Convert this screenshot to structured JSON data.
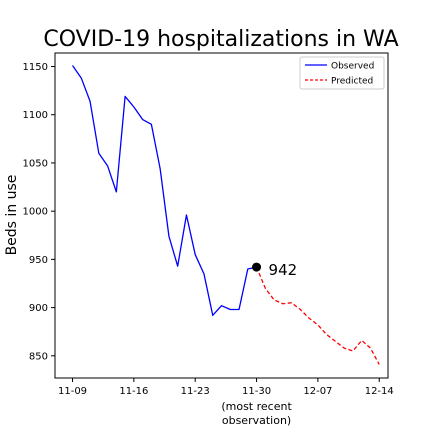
{
  "chart_data": {
    "type": "line",
    "title": "COVID-19 hospitalizations in WA",
    "xlabel": "",
    "ylabel": "Beds in use",
    "ylim": [
      827,
      1164
    ],
    "xlim": [
      "2020-11-07",
      "2020-12-15"
    ],
    "x_ticks": [
      "11-09",
      "11-16",
      "11-23",
      "11-30",
      "12-07",
      "12-14"
    ],
    "x_tick_dates": [
      "2020-11-09",
      "2020-11-16",
      "2020-11-23",
      "2020-11-30",
      "2020-12-07",
      "2020-12-14"
    ],
    "x_tick_annotation": "(most recent\nobservation)",
    "y_ticks": [
      850,
      900,
      950,
      1000,
      1050,
      1100,
      1150
    ],
    "grid": false,
    "legend_position": "top-right",
    "series": [
      {
        "name": "Observed",
        "color": "#0000ff",
        "style": "solid",
        "x": [
          "2020-11-09",
          "2020-11-10",
          "2020-11-11",
          "2020-11-12",
          "2020-11-13",
          "2020-11-14",
          "2020-11-15",
          "2020-11-16",
          "2020-11-17",
          "2020-11-18",
          "2020-11-19",
          "2020-11-20",
          "2020-11-21",
          "2020-11-22",
          "2020-11-23",
          "2020-11-24",
          "2020-11-25",
          "2020-11-26",
          "2020-11-27",
          "2020-11-28",
          "2020-11-29",
          "2020-11-30"
        ],
        "values": [
          1151,
          1138,
          1114,
          1060,
          1047,
          1020,
          1119,
          1108,
          1095,
          1090,
          1044,
          974,
          943,
          996,
          955,
          935,
          892,
          902,
          898,
          898,
          940,
          942
        ]
      },
      {
        "name": "Predicted",
        "color": "#ff0000",
        "style": "dashed",
        "x": [
          "2020-11-30",
          "2020-12-01",
          "2020-12-02",
          "2020-12-03",
          "2020-12-04",
          "2020-12-05",
          "2020-12-06",
          "2020-12-07",
          "2020-12-08",
          "2020-12-09",
          "2020-12-10",
          "2020-12-11",
          "2020-12-12",
          "2020-12-13",
          "2020-12-14"
        ],
        "values": [
          942,
          920,
          908,
          904,
          905,
          898,
          889,
          882,
          872,
          865,
          858,
          855,
          866,
          858,
          841
        ]
      }
    ],
    "annotations": [
      {
        "x": "2020-11-30",
        "y": 942,
        "label": "942"
      }
    ]
  }
}
